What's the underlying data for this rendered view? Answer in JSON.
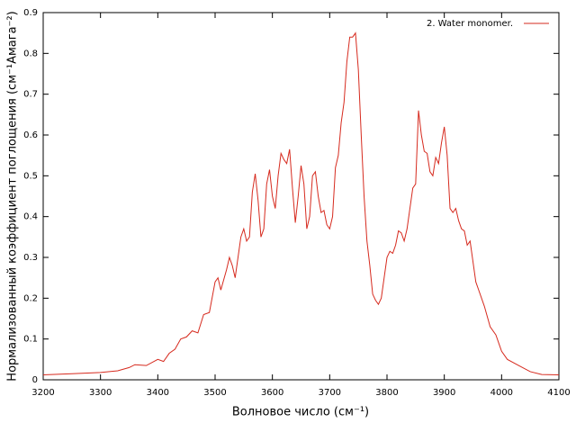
{
  "chart_data": {
    "type": "line",
    "xlabel": "Волновое число (см⁻¹)",
    "ylabel": "Нормализованный коэффициент поглощения (см⁻¹Амага⁻²)",
    "x": [
      3200,
      3250,
      3300,
      3330,
      3350,
      3360,
      3380,
      3400,
      3410,
      3420,
      3430,
      3440,
      3450,
      3460,
      3470,
      3480,
      3490,
      3500,
      3505,
      3510,
      3520,
      3525,
      3530,
      3535,
      3545,
      3550,
      3555,
      3560,
      3565,
      3570,
      3575,
      3580,
      3585,
      3590,
      3595,
      3600,
      3605,
      3610,
      3615,
      3620,
      3625,
      3630,
      3635,
      3640,
      3645,
      3650,
      3655,
      3660,
      3665,
      3670,
      3675,
      3680,
      3685,
      3690,
      3695,
      3700,
      3705,
      3710,
      3715,
      3720,
      3725,
      3730,
      3735,
      3740,
      3745,
      3750,
      3755,
      3760,
      3765,
      3770,
      3775,
      3780,
      3785,
      3790,
      3795,
      3800,
      3805,
      3810,
      3815,
      3820,
      3825,
      3830,
      3835,
      3840,
      3845,
      3850,
      3855,
      3860,
      3865,
      3870,
      3875,
      3880,
      3885,
      3890,
      3895,
      3900,
      3905,
      3910,
      3915,
      3920,
      3925,
      3930,
      3935,
      3940,
      3945,
      3950,
      3955,
      3960,
      3970,
      3980,
      3990,
      4000,
      4010,
      4030,
      4050,
      4070,
      4100
    ],
    "series": [
      {
        "name": "2. Water monomer.",
        "color": "#d62a1e",
        "values": [
          0.012,
          0.015,
          0.018,
          0.022,
          0.03,
          0.037,
          0.035,
          0.05,
          0.045,
          0.065,
          0.075,
          0.1,
          0.105,
          0.12,
          0.115,
          0.16,
          0.165,
          0.24,
          0.25,
          0.22,
          0.27,
          0.3,
          0.28,
          0.25,
          0.35,
          0.37,
          0.34,
          0.35,
          0.46,
          0.505,
          0.44,
          0.35,
          0.37,
          0.48,
          0.515,
          0.45,
          0.42,
          0.5,
          0.555,
          0.54,
          0.53,
          0.565,
          0.47,
          0.385,
          0.45,
          0.525,
          0.48,
          0.37,
          0.4,
          0.5,
          0.51,
          0.45,
          0.41,
          0.415,
          0.38,
          0.37,
          0.4,
          0.52,
          0.55,
          0.63,
          0.68,
          0.78,
          0.84,
          0.84,
          0.85,
          0.76,
          0.6,
          0.45,
          0.34,
          0.28,
          0.21,
          0.195,
          0.185,
          0.2,
          0.25,
          0.3,
          0.315,
          0.31,
          0.33,
          0.365,
          0.36,
          0.34,
          0.37,
          0.42,
          0.47,
          0.48,
          0.66,
          0.6,
          0.56,
          0.555,
          0.51,
          0.5,
          0.545,
          0.53,
          0.58,
          0.62,
          0.55,
          0.42,
          0.41,
          0.42,
          0.39,
          0.37,
          0.365,
          0.33,
          0.34,
          0.29,
          0.24,
          0.22,
          0.18,
          0.13,
          0.11,
          0.07,
          0.05,
          0.035,
          0.02,
          0.013,
          0.012
        ]
      }
    ],
    "xlim": [
      3200,
      4100
    ],
    "xticks": [
      3200,
      3300,
      3400,
      3500,
      3600,
      3700,
      3800,
      3900,
      4000,
      4100
    ],
    "ylim": [
      0,
      0.9
    ],
    "yticks": [
      0,
      0.1,
      0.2,
      0.3,
      0.4,
      0.5,
      0.6,
      0.7,
      0.8,
      0.9
    ],
    "legend": "top-right"
  }
}
